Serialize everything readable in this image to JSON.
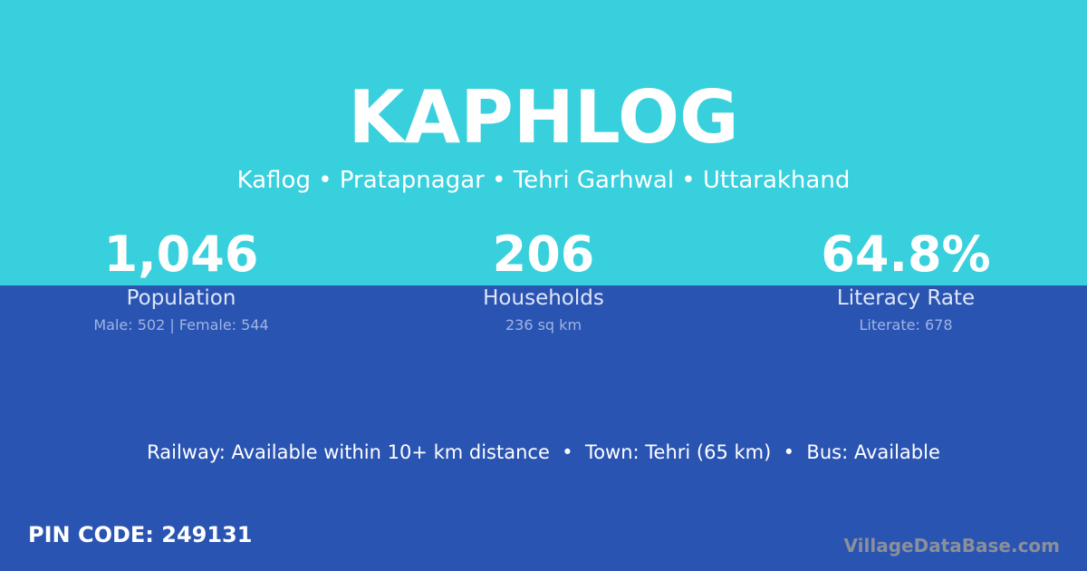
{
  "village_name": "KAPHLOG",
  "location_path": "Kaflog • Pratapnagar • Tehri Garhwal • Uttarakhand",
  "stats": [
    {
      "value": "1,046",
      "label": "Population",
      "detail": "Male: 502 | Female: 544"
    },
    {
      "value": "206",
      "label": "Households",
      "detail": "236 sq km"
    },
    {
      "value": "64.8%",
      "label": "Literacy Rate",
      "detail": "Literate: 678"
    }
  ],
  "connectivity": "Railway: Available within 10+ km distance  •  Town: Tehri (65 km)  •  Bus: Available",
  "pin_code": "PIN CODE: 249131",
  "brand": "VillageDataBase.com",
  "colors": {
    "top_band": "#38d0dd",
    "bottom_band": "#2a54b2"
  }
}
